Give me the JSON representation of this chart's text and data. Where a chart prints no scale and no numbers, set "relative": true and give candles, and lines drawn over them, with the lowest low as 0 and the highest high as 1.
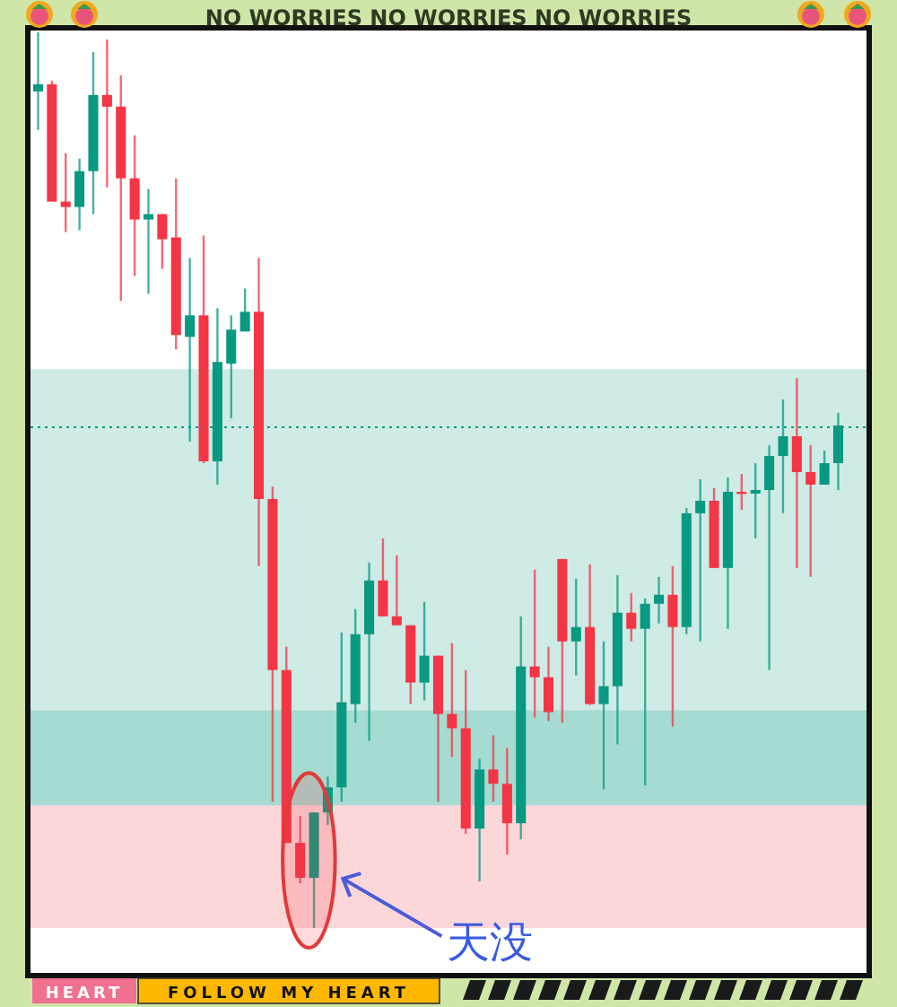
{
  "chart_data": {
    "type": "candlestick",
    "relative": true,
    "categories": [
      null,
      null,
      null,
      null,
      null,
      null,
      null,
      null,
      null,
      null,
      null,
      null,
      null,
      null,
      null,
      null,
      null,
      null,
      null,
      null,
      null,
      null,
      null,
      null,
      null,
      null,
      null,
      null,
      null,
      null,
      null,
      null,
      null,
      null,
      null,
      null,
      null,
      null,
      null,
      null,
      null,
      null,
      null,
      null,
      null,
      null,
      null,
      null,
      null,
      null,
      null,
      null,
      null,
      null,
      null,
      null,
      null,
      null,
      null
    ],
    "ohlc": [
      [
        0.934,
        1.0,
        0.891,
        0.942
      ],
      [
        0.942,
        0.946,
        0.811,
        0.811
      ],
      [
        0.811,
        0.865,
        0.777,
        0.805
      ],
      [
        0.805,
        0.859,
        0.779,
        0.845
      ],
      [
        0.845,
        0.978,
        0.797,
        0.93
      ],
      [
        0.93,
        0.992,
        0.827,
        0.917
      ],
      [
        0.917,
        0.952,
        0.7,
        0.837
      ],
      [
        0.837,
        0.885,
        0.728,
        0.791
      ],
      [
        0.791,
        0.825,
        0.708,
        0.797
      ],
      [
        0.797,
        0.797,
        0.736,
        0.769
      ],
      [
        0.771,
        0.837,
        0.646,
        0.662
      ],
      [
        0.66,
        0.748,
        0.543,
        0.684
      ],
      [
        0.684,
        0.773,
        0.519,
        0.521
      ],
      [
        0.521,
        0.692,
        0.495,
        0.632
      ],
      [
        0.63,
        0.684,
        0.569,
        0.668
      ],
      [
        0.666,
        0.714,
        0.666,
        0.688
      ],
      [
        0.688,
        0.748,
        0.404,
        0.479
      ],
      [
        0.479,
        0.493,
        0.141,
        0.288
      ],
      [
        0.288,
        0.314,
        0.095,
        0.095
      ],
      [
        0.095,
        0.125,
        0.05,
        0.056
      ],
      [
        0.056,
        0.129,
        0.0,
        0.129
      ],
      [
        0.129,
        0.169,
        0.115,
        0.157
      ],
      [
        0.157,
        0.33,
        0.141,
        0.252
      ],
      [
        0.25,
        0.356,
        0.229,
        0.328
      ],
      [
        0.328,
        0.408,
        0.209,
        0.388
      ],
      [
        0.388,
        0.435,
        0.348,
        0.348
      ],
      [
        0.348,
        0.416,
        0.338,
        0.338
      ],
      [
        0.338,
        0.338,
        0.25,
        0.274
      ],
      [
        0.274,
        0.364,
        0.254,
        0.304
      ],
      [
        0.304,
        0.304,
        0.141,
        0.239
      ],
      [
        0.239,
        0.318,
        0.191,
        0.223
      ],
      [
        0.223,
        0.288,
        0.105,
        0.111
      ],
      [
        0.111,
        0.189,
        0.052,
        0.177
      ],
      [
        0.177,
        0.215,
        0.141,
        0.161
      ],
      [
        0.161,
        0.201,
        0.082,
        0.117
      ],
      [
        0.117,
        0.348,
        0.099,
        0.292
      ],
      [
        0.292,
        0.4,
        0.235,
        0.28
      ],
      [
        0.28,
        0.314,
        0.231,
        0.241
      ],
      [
        0.412,
        0.412,
        0.229,
        0.32
      ],
      [
        0.32,
        0.39,
        0.282,
        0.336
      ],
      [
        0.336,
        0.406,
        0.249,
        0.25
      ],
      [
        0.25,
        0.32,
        0.155,
        0.27
      ],
      [
        0.27,
        0.394,
        0.205,
        0.352
      ],
      [
        0.352,
        0.374,
        0.32,
        0.334
      ],
      [
        0.334,
        0.368,
        0.159,
        0.362
      ],
      [
        0.362,
        0.392,
        0.34,
        0.372
      ],
      [
        0.372,
        0.404,
        0.225,
        0.336
      ],
      [
        0.336,
        0.469,
        0.328,
        0.463
      ],
      [
        0.463,
        0.501,
        0.32,
        0.477
      ],
      [
        0.477,
        0.491,
        0.402,
        0.402
      ],
      [
        0.402,
        0.503,
        0.334,
        0.487
      ],
      [
        0.487,
        0.507,
        0.467,
        0.485
      ],
      [
        0.485,
        0.519,
        0.435,
        0.489
      ],
      [
        0.489,
        0.539,
        0.288,
        0.527
      ],
      [
        0.527,
        0.59,
        0.463,
        0.549
      ],
      [
        0.549,
        0.614,
        0.402,
        0.509
      ],
      [
        0.509,
        0.539,
        0.392,
        0.495
      ],
      [
        0.495,
        0.533,
        0.495,
        0.519
      ],
      [
        0.519,
        0.575,
        0.489,
        0.561
      ]
    ],
    "ref_lines": [
      {
        "axis": "y",
        "value": 0.559,
        "color": "#089981",
        "line_style": "dotted"
      }
    ],
    "bands": [
      {
        "axis": "y",
        "from": 0.137,
        "to": 0.624,
        "color": "#089981"
      },
      {
        "axis": "y",
        "from": 0.137,
        "to": 0.243,
        "color": "#089981"
      },
      {
        "axis": "y",
        "from": 0.0,
        "to": 0.137,
        "color": "#f23645"
      }
    ],
    "annotations": [
      "NO WORRIES NO WORRIES NO WORRIES",
      "HEART",
      "FOLLOW MY HEART",
      "天没"
    ]
  }
}
